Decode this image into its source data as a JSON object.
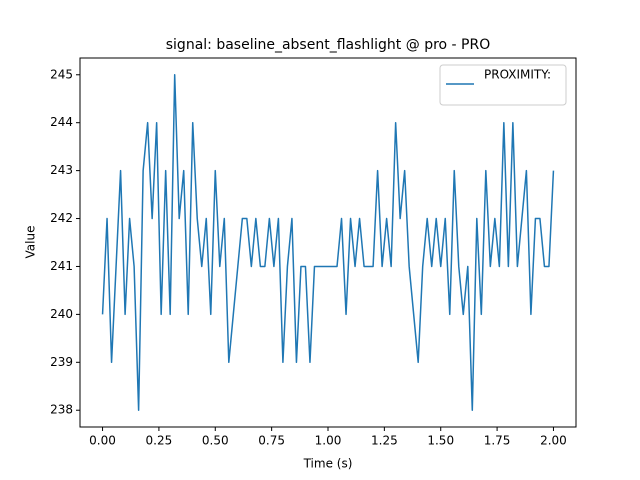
{
  "chart_data": {
    "type": "line",
    "title": "signal: baseline_absent_flashlight @ pro - PRO",
    "x_label": "Time (s)",
    "y_label": "Value",
    "x": [
      0,
      0.02,
      0.04,
      0.06,
      0.08,
      0.1,
      0.12,
      0.14,
      0.16,
      0.18,
      0.2,
      0.22,
      0.24,
      0.26,
      0.28,
      0.3,
      0.32,
      0.34,
      0.36,
      0.38,
      0.4,
      0.42,
      0.44,
      0.46,
      0.48,
      0.5,
      0.52,
      0.54,
      0.56,
      0.58,
      0.6,
      0.62,
      0.64,
      0.66,
      0.68,
      0.7,
      0.72,
      0.74,
      0.76,
      0.78,
      0.8,
      0.82,
      0.84,
      0.86,
      0.88,
      0.9,
      0.92,
      0.94,
      0.96,
      0.98,
      1,
      1.02,
      1.04,
      1.06,
      1.08,
      1.1,
      1.12,
      1.14,
      1.16,
      1.18,
      1.2,
      1.22,
      1.24,
      1.26,
      1.28,
      1.3,
      1.32,
      1.34,
      1.36,
      1.38,
      1.4,
      1.42,
      1.44,
      1.46,
      1.48,
      1.5,
      1.52,
      1.54,
      1.56,
      1.58,
      1.6,
      1.62,
      1.64,
      1.66,
      1.68,
      1.7,
      1.72,
      1.74,
      1.76,
      1.78,
      1.8,
      1.82,
      1.84,
      1.86,
      1.88,
      1.9,
      1.92,
      1.94,
      1.96,
      1.98,
      2
    ],
    "series": [
      {
        "name": "PROXIMITY:",
        "color": "#1f77b4",
        "values": [
          240,
          242,
          239,
          241,
          243,
          240,
          242,
          241,
          238,
          243,
          244,
          242,
          244,
          240,
          243,
          240,
          245,
          242,
          243,
          240,
          244,
          242,
          241,
          242,
          240,
          243,
          241,
          242,
          239,
          240,
          241,
          242,
          242,
          241,
          242,
          241,
          241,
          242,
          241,
          242,
          239,
          241,
          242,
          239,
          241,
          241,
          239,
          241,
          241,
          241,
          241,
          241,
          241,
          242,
          240,
          242,
          241,
          242,
          241,
          241,
          241,
          243,
          241,
          242,
          241,
          244,
          242,
          243,
          241,
          240,
          239,
          241,
          242,
          241,
          242,
          241,
          242,
          240,
          243,
          241,
          240,
          241,
          238,
          242,
          240,
          243,
          241,
          242,
          241,
          244,
          241,
          244,
          241,
          242,
          243,
          240,
          242,
          242,
          241,
          241,
          243
        ]
      }
    ],
    "xlim": [
      -0.1,
      2.1
    ],
    "ylim": [
      237.65,
      245.35
    ],
    "xticks": [
      {
        "value": 0,
        "label": "0.00"
      },
      0.25,
      {
        "value": 0.5,
        "label": "0.50"
      },
      0.75,
      {
        "value": 1,
        "label": "1.00"
      },
      1.25,
      {
        "value": 1.5,
        "label": "1.50"
      },
      1.75,
      {
        "value": 2,
        "label": "2.00"
      }
    ],
    "yticks": [
      238,
      239,
      240,
      241,
      242,
      243,
      244,
      245
    ],
    "legend": "upper right",
    "grid": false
  }
}
